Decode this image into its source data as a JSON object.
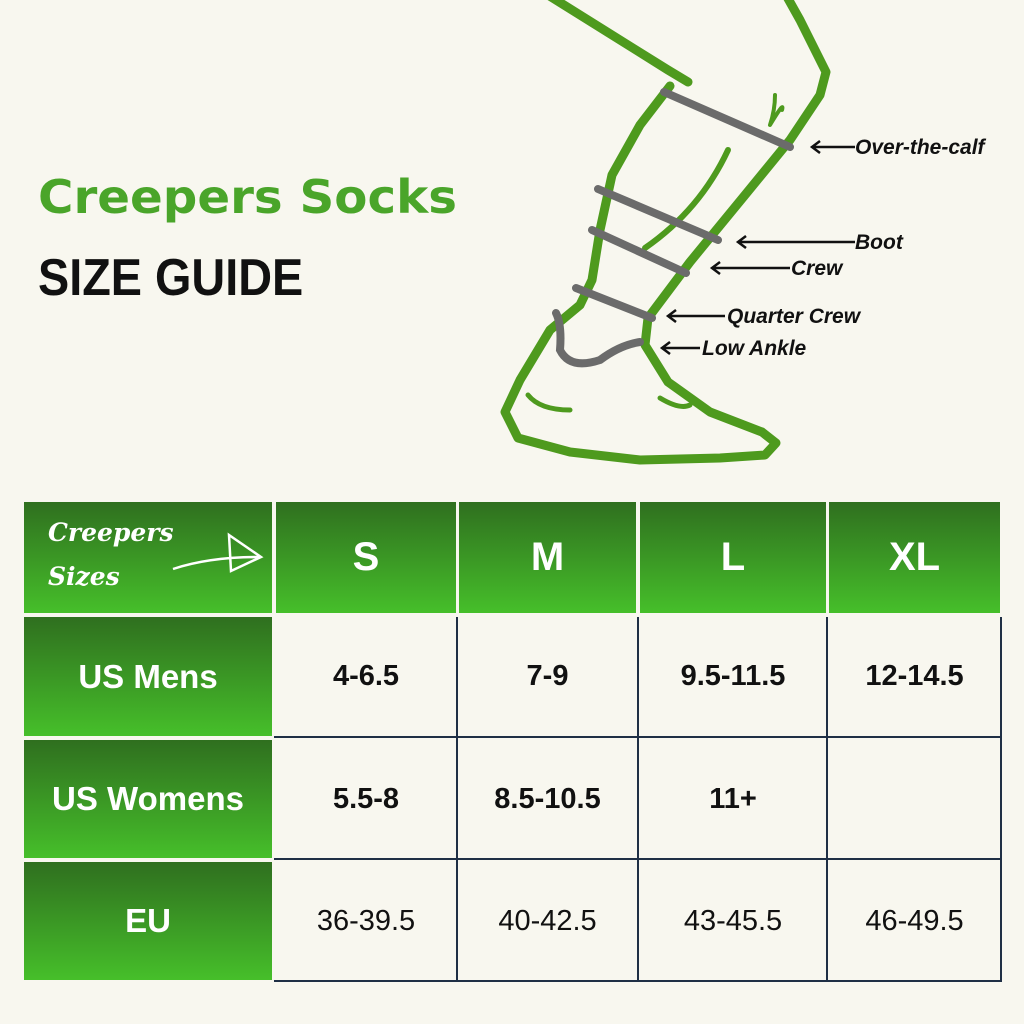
{
  "header": {
    "brand": "Creepers Socks",
    "title": "SIZE GUIDE"
  },
  "diagram": {
    "labels": [
      "Over-the-calf",
      "Boot",
      "Crew",
      "Quarter Crew",
      "Low Ankle"
    ],
    "colors": {
      "outline": "#4e9a1e",
      "bands": "#6b6b6b"
    }
  },
  "table": {
    "corner": {
      "line1": "Creepers",
      "line2": "Sizes"
    },
    "columns": [
      "S",
      "M",
      "L",
      "XL"
    ],
    "rows": [
      {
        "label": "US Mens",
        "values": [
          "4-6.5",
          "7-9",
          "9.5-11.5",
          "12-14.5"
        ]
      },
      {
        "label": "US Womens",
        "values": [
          "5.5-8",
          "8.5-10.5",
          "11+",
          ""
        ]
      },
      {
        "label": "EU",
        "values": [
          "36-39.5",
          "40-42.5",
          "43-45.5",
          "46-49.5"
        ]
      }
    ],
    "colors": {
      "header_dark": "#2f6f1f",
      "header_light": "#46bf2a",
      "grid": "#1f2f45"
    }
  }
}
